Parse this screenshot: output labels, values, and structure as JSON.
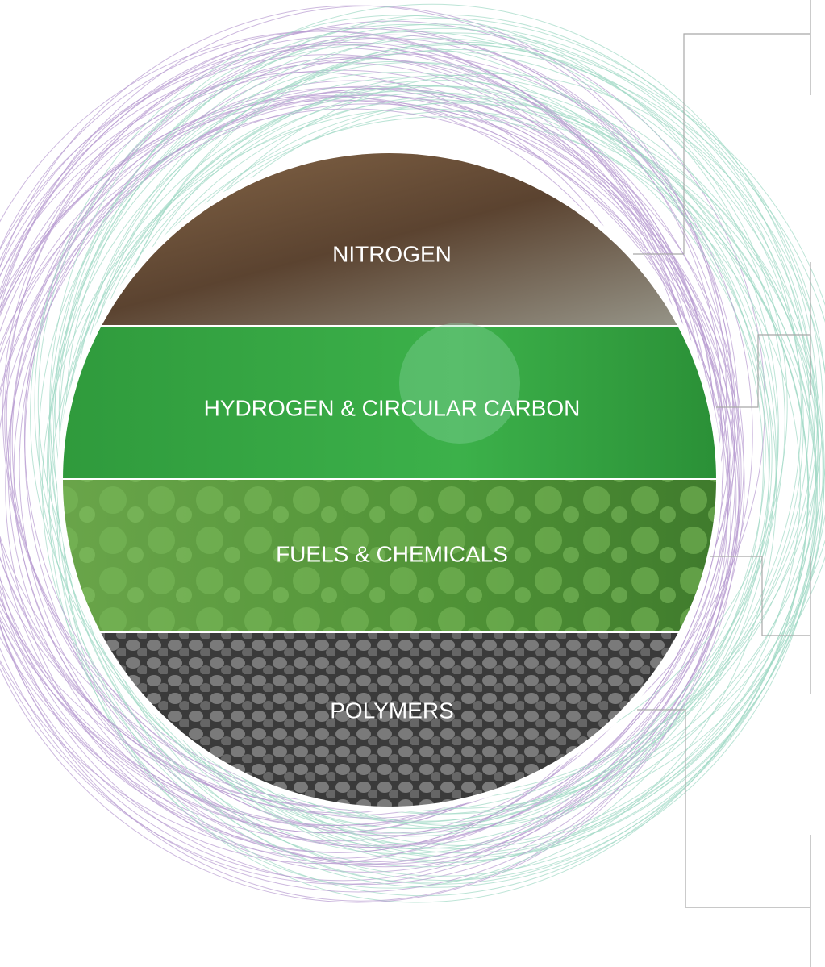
{
  "segments": [
    {
      "label": "NITROGEN"
    },
    {
      "label": "HYDROGEN & CIRCULAR CARBON"
    },
    {
      "label": "FUELS & CHEMICALS"
    },
    {
      "label": "POLYMERS"
    }
  ]
}
